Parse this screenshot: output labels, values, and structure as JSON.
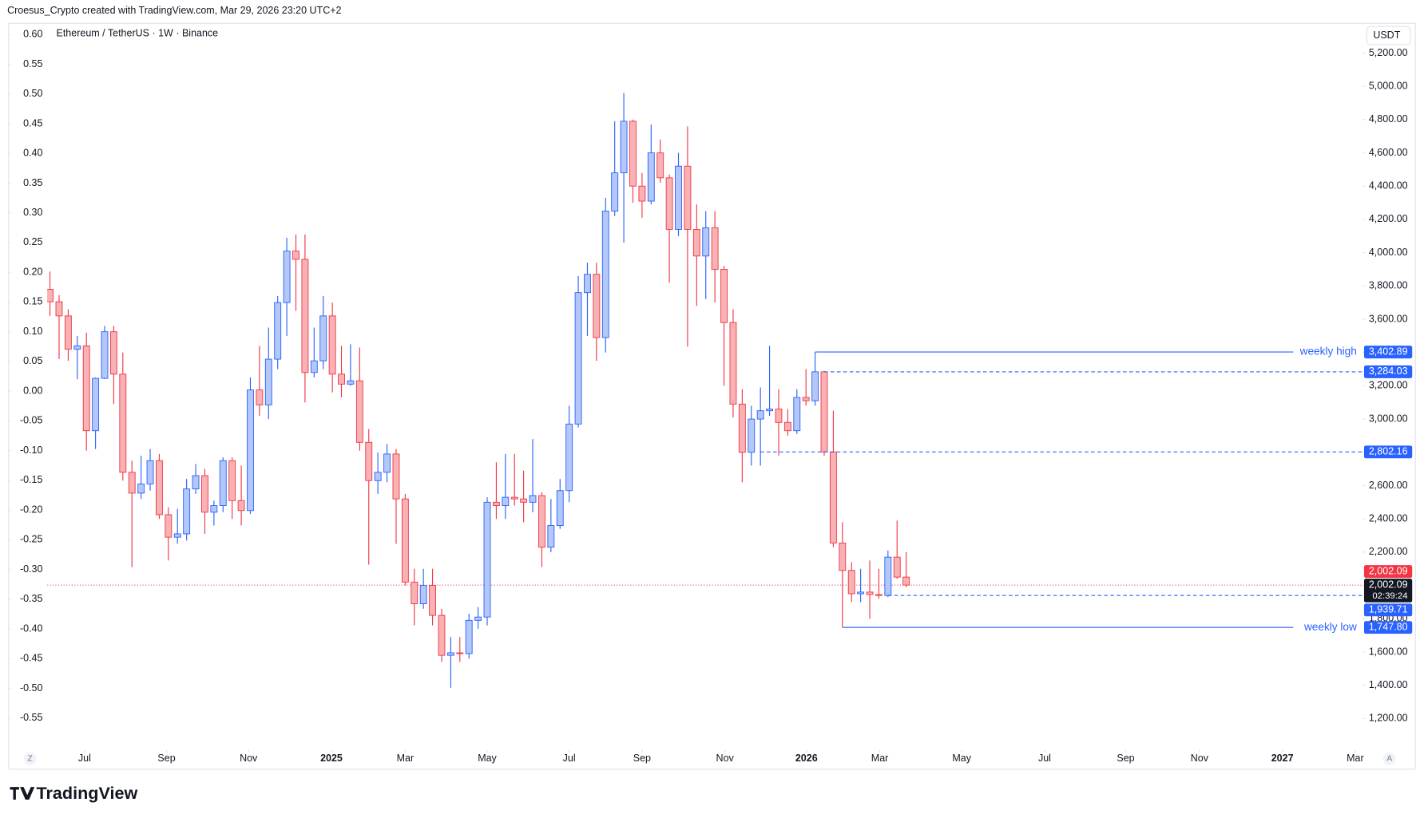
{
  "header": "Croesus_Crypto created with TradingView.com, Mar 29, 2026 23:20 UTC+2",
  "footer_logo": "TradingView",
  "buttons": {
    "left": "Z",
    "right": "A"
  },
  "chart_data": {
    "type": "candlestick",
    "title": "Ethereum / TetherUS · 1W · Binance",
    "unit": "USDT",
    "up_color": "#2962ff",
    "up_fill": "#b3c8f8",
    "down_color": "#f23645",
    "down_fill": "#f8b2b4",
    "open": [
      3780,
      3705,
      3620,
      3420,
      3440,
      2930,
      3245,
      3525,
      3270,
      2680,
      2555,
      2610,
      2750,
      2425,
      2290,
      2310,
      2580,
      2660,
      2440,
      2480,
      2750,
      2510,
      2450,
      3175,
      3085,
      3360,
      3700,
      4010,
      3960,
      3280,
      3350,
      3620,
      3270,
      3210,
      3230,
      2860,
      2630,
      2680,
      2790,
      2520,
      2020,
      1890,
      2000,
      1820,
      1580,
      1595,
      1590,
      1790,
      1810,
      2500,
      2480,
      2530,
      2520,
      2500,
      2540,
      2230,
      2360,
      2570,
      2970,
      3760,
      3870,
      3490,
      4250,
      4480,
      4790,
      4400,
      4310,
      4600,
      4450,
      4140,
      4520,
      4140,
      3980,
      4150,
      3900,
      3580,
      3090,
      2800,
      3000,
      3050,
      3060,
      2980,
      2930,
      3130,
      3110,
      3284.03,
      2802.16,
      2255,
      2090,
      1950,
      1960,
      1945,
      1939.71,
      2170,
      2050
    ],
    "high": [
      3887,
      3745,
      3660,
      3500,
      3520,
      3250,
      3560,
      3560,
      3400,
      2750,
      2780,
      2820,
      2790,
      2470,
      2460,
      2640,
      2730,
      2700,
      2510,
      2770,
      2770,
      2720,
      3250,
      3440,
      3550,
      3740,
      4090,
      4110,
      4110,
      3550,
      3740,
      3700,
      3440,
      3450,
      3430,
      2940,
      2800,
      2850,
      2820,
      2550,
      2100,
      2100,
      2100,
      1860,
      1690,
      1690,
      1830,
      1870,
      2530,
      2740,
      2790,
      2790,
      2690,
      2880,
      2560,
      2520,
      2640,
      3080,
      3860,
      3940,
      3940,
      4330,
      4790,
      4960,
      4800,
      4480,
      4770,
      4680,
      4470,
      4600,
      4760,
      4290,
      4250,
      4250,
      3920,
      3660,
      3180,
      3080,
      3190,
      3440,
      3180,
      3060,
      3180,
      3300,
      3402.89,
      3290,
      3050,
      2380,
      2140,
      2100,
      2150,
      2100,
      2210,
      2390,
      2200
    ],
    "low": [
      3620,
      3360,
      3350,
      3240,
      2810,
      2820,
      3240,
      3090,
      2630,
      2110,
      2520,
      2570,
      2400,
      2150,
      2250,
      2270,
      2550,
      2310,
      2360,
      2440,
      2400,
      2360,
      2430,
      3020,
      3000,
      3300,
      3500,
      3650,
      3100,
      3250,
      3300,
      3160,
      3130,
      3200,
      2810,
      2125,
      2550,
      2620,
      2250,
      2000,
      1760,
      1860,
      1760,
      1540,
      1385,
      1540,
      1560,
      1740,
      1760,
      2400,
      2400,
      2480,
      2380,
      2440,
      2110,
      2200,
      2340,
      2500,
      2950,
      3500,
      3350,
      3400,
      4220,
      4060,
      4300,
      4210,
      4290,
      4420,
      3820,
      4100,
      3435,
      3680,
      3720,
      3700,
      3200,
      3010,
      2620,
      2720,
      2720,
      3020,
      2780,
      2900,
      2910,
      3080,
      3080,
      2780,
      2230,
      1747.8,
      1900,
      1900,
      1800,
      1920,
      1930,
      2040,
      1990
    ],
    "close": [
      3705,
      3620,
      3420,
      3440,
      2930,
      3245,
      3525,
      3270,
      2680,
      2555,
      2610,
      2750,
      2425,
      2290,
      2310,
      2580,
      2660,
      2440,
      2480,
      2750,
      2510,
      2450,
      3175,
      3085,
      3360,
      3700,
      4010,
      3960,
      3280,
      3350,
      3620,
      3270,
      3210,
      3230,
      2860,
      2630,
      2680,
      2790,
      2520,
      2020,
      1890,
      2000,
      1820,
      1580,
      1595,
      1590,
      1790,
      1810,
      2500,
      2480,
      2530,
      2520,
      2500,
      2540,
      2230,
      2360,
      2570,
      2970,
      3760,
      3870,
      3490,
      4250,
      4480,
      4790,
      4400,
      4310,
      4600,
      4450,
      4140,
      4520,
      4140,
      3980,
      4150,
      3900,
      3580,
      3090,
      2800,
      3000,
      3050,
      3060,
      2980,
      2930,
      3130,
      3110,
      3284.03,
      2802.16,
      2255,
      2090,
      1950,
      1960,
      1945,
      1939.71,
      2170,
      2050,
      2002.09
    ],
    "xlim": [
      -4.49,
      144.07
    ],
    "xticks": [
      {
        "value": 3.8,
        "label": "Jul"
      },
      {
        "value": 12.8,
        "label": "Sep"
      },
      {
        "value": 21.8,
        "label": "Nov"
      },
      {
        "value": 30.9,
        "label": "2025"
      },
      {
        "value": 39.0,
        "label": "Mar"
      },
      {
        "value": 48.0,
        "label": "May"
      },
      {
        "value": 57.0,
        "label": "Jul"
      },
      {
        "value": 65.0,
        "label": "Sep"
      },
      {
        "value": 74.1,
        "label": "Nov"
      },
      {
        "value": 83.05,
        "label": "2026"
      },
      {
        "value": 91.1,
        "label": "Mar"
      },
      {
        "value": 100.1,
        "label": "May"
      },
      {
        "value": 109.2,
        "label": "Jul"
      },
      {
        "value": 118.1,
        "label": "Sep"
      },
      {
        "value": 126.2,
        "label": "Nov"
      },
      {
        "value": 135.3,
        "label": "2027"
      },
      {
        "value": 143.3,
        "label": "Mar"
      }
    ],
    "ylim": [
      1045,
      5365
    ],
    "yticks": [
      {
        "value": 1200,
        "label": "1,200.00"
      },
      {
        "value": 1400,
        "label": "1,400.00"
      },
      {
        "value": 1600,
        "label": "1,600.00"
      },
      {
        "value": 1800,
        "label": "1,800.00"
      },
      {
        "value": 2000,
        "label": "2,000.00"
      },
      {
        "value": 2200,
        "label": "2,200.00"
      },
      {
        "value": 2400,
        "label": "2,400.00"
      },
      {
        "value": 2600,
        "label": "2,600.00"
      },
      {
        "value": 2800,
        "label": "2,800.00"
      },
      {
        "value": 3000,
        "label": "3,000.00"
      },
      {
        "value": 3200,
        "label": "3,200.00"
      },
      {
        "value": 3400,
        "label": "3,400.00"
      },
      {
        "value": 3600,
        "label": "3,600.00"
      },
      {
        "value": 3800,
        "label": "3,800.00"
      },
      {
        "value": 4000,
        "label": "4,000.00"
      },
      {
        "value": 4200,
        "label": "4,200.00"
      },
      {
        "value": 4400,
        "label": "4,400.00"
      },
      {
        "value": 4600,
        "label": "4,600.00"
      },
      {
        "value": 4800,
        "label": "4,800.00"
      },
      {
        "value": 5000,
        "label": "5,000.00"
      },
      {
        "value": 5200,
        "label": "5,200.00"
      }
    ],
    "y2lim": [
      -0.594,
      0.615
    ],
    "y2ticks": [
      {
        "value": 0.6,
        "label": "0.60"
      },
      0.55,
      {
        "value": 0.5,
        "label": "0.50"
      },
      0.45,
      {
        "value": 0.4,
        "label": "0.40"
      },
      0.35,
      {
        "value": 0.3,
        "label": "0.30"
      },
      0.25,
      {
        "value": 0.2,
        "label": "0.20"
      },
      0.15,
      {
        "value": 0.1,
        "label": "0.10"
      },
      0.05,
      {
        "value": 0,
        "label": "0.00"
      },
      -0.05,
      {
        "value": -0.1,
        "label": "-0.10"
      },
      -0.15,
      {
        "value": -0.2,
        "label": "-0.20"
      },
      -0.25,
      {
        "value": -0.3,
        "label": "-0.30"
      },
      -0.35,
      {
        "value": -0.4,
        "label": "-0.40"
      },
      -0.45,
      {
        "value": -0.5,
        "label": "-0.50"
      },
      -0.55
    ],
    "grid": false,
    "level_color": "#2962ff",
    "levels": [
      {
        "label": "weekly high",
        "value": 3402.89,
        "value_label": "3,402.89",
        "start": 84,
        "style": "solid"
      },
      {
        "value": 3284.03,
        "value_label": "3,284.03",
        "start": 85,
        "style": "dashed"
      },
      {
        "value": 2802.16,
        "value_label": "2,802.16",
        "start": 78,
        "style": "dashed"
      },
      {
        "value": 1939.71,
        "value_label": "1,939.71",
        "start": 92,
        "style": "dashed"
      },
      {
        "label": "weekly low",
        "value": 1747.8,
        "value_label": "1,747.80",
        "start": 87,
        "style": "solid"
      }
    ],
    "last": {
      "value": 2002.09,
      "value_label": "2,002.09",
      "countdown": "02:39:24",
      "color": "#f23645"
    }
  }
}
